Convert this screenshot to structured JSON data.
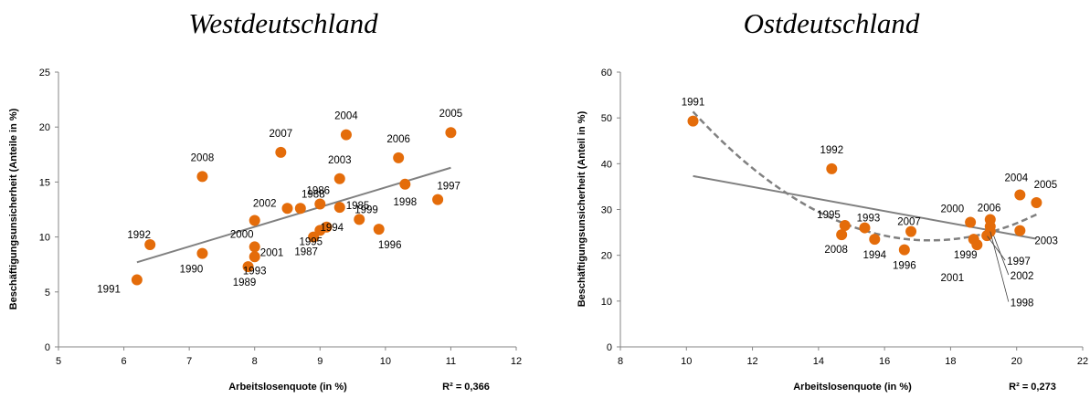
{
  "chart_data": [
    {
      "type": "scatter",
      "title": "Westdeutschland",
      "xlabel": "Arbeitslosenquote (in %)",
      "ylabel": "Beschäftigungsunsicherheit (Anteile in %)",
      "xlim": [
        5,
        12
      ],
      "ylim": [
        0,
        25
      ],
      "xticks": [
        5,
        6,
        7,
        8,
        9,
        10,
        11,
        12
      ],
      "yticks": [
        0,
        5,
        10,
        15,
        20,
        25
      ],
      "r2_label": "R² = 0,366",
      "marker_color": "#E46C0A",
      "trend_color": "#808080",
      "points": [
        {
          "year": "1991",
          "x": 6.2,
          "y": 6.1
        },
        {
          "year": "1992",
          "x": 6.4,
          "y": 9.3
        },
        {
          "year": "2008",
          "x": 7.2,
          "y": 15.5
        },
        {
          "year": "1990",
          "x": 7.2,
          "y": 8.5
        },
        {
          "year": "1989",
          "x": 7.9,
          "y": 7.3
        },
        {
          "year": "1993",
          "x": 8.0,
          "y": 8.2
        },
        {
          "year": "2001",
          "x": 8.0,
          "y": 9.1
        },
        {
          "year": "2000",
          "x": 8.0,
          "y": 11.5
        },
        {
          "year": "2007",
          "x": 8.4,
          "y": 17.7
        },
        {
          "year": "2002",
          "x": 8.5,
          "y": 12.6
        },
        {
          "year": "1988",
          "x": 8.7,
          "y": 12.6
        },
        {
          "year": "1987",
          "x": 8.9,
          "y": 10.0
        },
        {
          "year": "1995",
          "x": 9.0,
          "y": 10.6
        },
        {
          "year": "1986",
          "x": 9.0,
          "y": 13.0
        },
        {
          "year": "1994",
          "x": 9.1,
          "y": 10.9
        },
        {
          "year": "2003",
          "x": 9.3,
          "y": 15.3
        },
        {
          "year": "1985",
          "x": 9.3,
          "y": 12.7
        },
        {
          "year": "2004",
          "x": 9.4,
          "y": 19.3
        },
        {
          "year": "1999",
          "x": 9.6,
          "y": 11.6
        },
        {
          "year": "1996",
          "x": 9.9,
          "y": 10.7
        },
        {
          "year": "2006",
          "x": 10.2,
          "y": 17.2
        },
        {
          "year": "1998",
          "x": 10.3,
          "y": 14.8
        },
        {
          "year": "1997",
          "x": 10.8,
          "y": 13.4
        },
        {
          "year": "2005",
          "x": 11.0,
          "y": 19.5
        }
      ],
      "trendline": {
        "type": "linear",
        "from": [
          6.2,
          7.7
        ],
        "to": [
          11.0,
          16.3
        ]
      }
    },
    {
      "type": "scatter",
      "title": "Ostdeutschland",
      "xlabel": "Arbeitslosenquote (in %)",
      "ylabel": "Beschäftigungsunsicherheit (Anteil in %)",
      "xlim": [
        8,
        22
      ],
      "ylim": [
        0,
        60
      ],
      "xticks": [
        8,
        10,
        12,
        14,
        16,
        18,
        20,
        22
      ],
      "yticks": [
        0,
        10,
        20,
        30,
        40,
        50,
        60
      ],
      "r2_label": "R² = 0,273",
      "marker_color": "#E46C0A",
      "trend_color": "#808080",
      "points": [
        {
          "year": "1991",
          "x": 10.2,
          "y": 49.3
        },
        {
          "year": "1992",
          "x": 14.4,
          "y": 38.9
        },
        {
          "year": "2008",
          "x": 14.7,
          "y": 24.5
        },
        {
          "year": "1995",
          "x": 14.8,
          "y": 26.5
        },
        {
          "year": "1993",
          "x": 15.4,
          "y": 26.0
        },
        {
          "year": "1994",
          "x": 15.7,
          "y": 23.5
        },
        {
          "year": "1996",
          "x": 16.6,
          "y": 21.2
        },
        {
          "year": "2007",
          "x": 16.8,
          "y": 25.2
        },
        {
          "year": "2000",
          "x": 18.6,
          "y": 27.2
        },
        {
          "year": "1999",
          "x": 18.7,
          "y": 23.5
        },
        {
          "year": "2001",
          "x": 18.8,
          "y": 22.3
        },
        {
          "year": "1997",
          "x": 19.1,
          "y": 24.3
        },
        {
          "year": "2002",
          "x": 19.2,
          "y": 26.3
        },
        {
          "year": "2006",
          "x": 19.2,
          "y": 27.8
        },
        {
          "year": "1998",
          "x": 19.2,
          "y": 25.2
        },
        {
          "year": "2004",
          "x": 20.1,
          "y": 33.2
        },
        {
          "year": "2003",
          "x": 20.1,
          "y": 25.4
        },
        {
          "year": "2005",
          "x": 20.6,
          "y": 31.5
        }
      ],
      "trendline": {
        "type": "linear",
        "from": [
          10.2,
          37.3
        ],
        "to": [
          20.6,
          23.6
        ]
      },
      "trendline2": {
        "type": "quadratic",
        "from_x": 10.2,
        "to_x": 20.6,
        "coefficients": {
          "a": 0.5455,
          "b": -18.96,
          "c": 188.0
        }
      }
    }
  ]
}
